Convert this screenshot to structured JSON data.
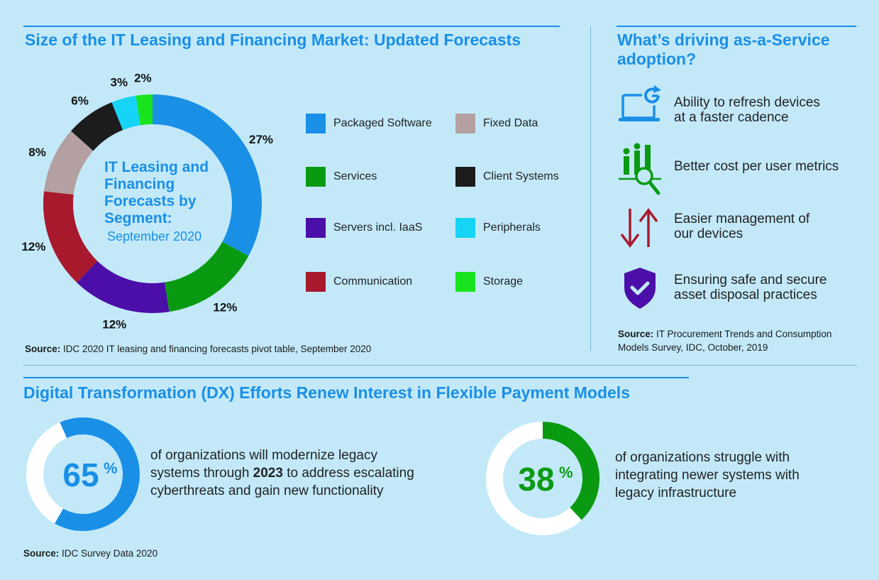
{
  "left_section": {
    "title": "Size of the IT Leasing and Financing Market: Updated Forecasts",
    "center_title": "IT Leasing and Financing Forecasts by Segment:",
    "center_subtitle": "September 2020",
    "source_label": "Source:",
    "source_text": " IDC 2020 IT leasing and financing forecasts pivot table, September 2020"
  },
  "chart_data": {
    "type": "pie",
    "donut": true,
    "title": "IT Leasing and Financing Forecasts by Segment: September 2020",
    "legend_placement": "right",
    "slices": [
      {
        "label": "Packaged Software",
        "value": 27,
        "display": "27%",
        "color": "#1a8fe6"
      },
      {
        "label": "Services",
        "value": 12,
        "display": "12%",
        "color": "#0a9a12"
      },
      {
        "label": "Servers incl. IaaS",
        "value": 12,
        "display": "12%",
        "color": "#4b0ea8"
      },
      {
        "label": "Communication",
        "value": 12,
        "display": "12%",
        "color": "#a8192e"
      },
      {
        "label": "Fixed Data",
        "value": 8,
        "display": "8%",
        "color": "#b4a0a0"
      },
      {
        "label": "Client Systems",
        "value": 6,
        "display": "6%",
        "color": "#1c1c1c"
      },
      {
        "label": "Peripherals",
        "value": 3,
        "display": "3%",
        "color": "#16d4f6"
      },
      {
        "label": "Storage",
        "value": 2,
        "display": "2%",
        "color": "#18e41e"
      }
    ],
    "legend_left": [
      "Packaged Software",
      "Services",
      "Servers incl. IaaS",
      "Communication"
    ],
    "legend_right": [
      "Fixed Data",
      "Client Systems",
      "Peripherals",
      "Storage"
    ]
  },
  "right_section": {
    "title_line1": "What’s driving as-a-Service",
    "title_line2": "adoption?",
    "drivers": [
      {
        "icon": "laptop-refresh-icon",
        "line1": "Ability to refresh devices",
        "line2": "at a faster cadence"
      },
      {
        "icon": "cost-metrics-magnifier-icon",
        "line1": "Better cost per user metrics",
        "line2": ""
      },
      {
        "icon": "up-down-arrows-icon",
        "line1": "Easier management of",
        "line2": "our devices"
      },
      {
        "icon": "shield-check-icon",
        "line1": "Ensuring safe and secure",
        "line2": "asset disposal practices"
      }
    ],
    "source_label": "Source:",
    "source_line1": " IT Procurement Trends and Consumption",
    "source_line2": "Models Survey, IDC, October, 2019"
  },
  "bottom_section": {
    "title": "Digital Transformation (DX) Efforts Renew Interest in Flexible Payment Models",
    "stat1": {
      "number": "65",
      "percent_sign": "%",
      "value": 65,
      "color": "#1a8fe6",
      "line1": "of organizations will modernize legacy",
      "line2_pre": "systems through ",
      "line2_bold": "2023",
      "line2_post": " to address escalating",
      "line3": "cyberthreats and gain new functionality"
    },
    "stat2": {
      "number": "38",
      "percent_sign": "%",
      "value": 38,
      "color": "#0a9a12",
      "line1": "of organizations struggle with",
      "line2": "integrating newer systems with",
      "line3": "legacy infrastructure"
    },
    "source_label": "Source:",
    "source_text": " IDC Survey Data 2020"
  },
  "colors": {
    "background": "#c3e9f9",
    "accent": "#1a8fe6",
    "green": "#0a9a12",
    "maroon": "#a8192e",
    "purple": "#4b0ea8"
  }
}
